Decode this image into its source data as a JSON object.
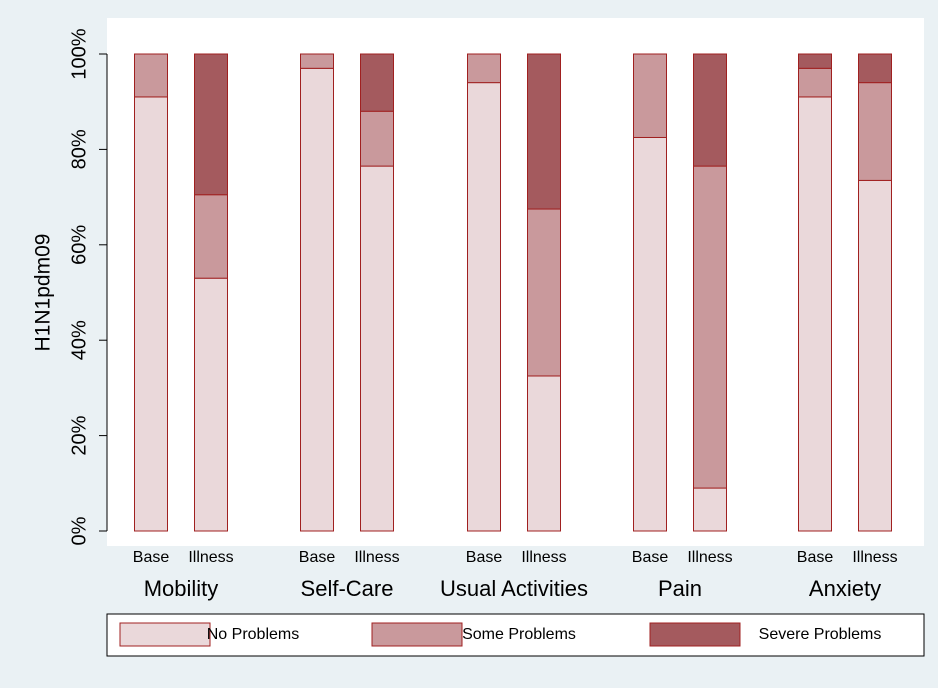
{
  "chart_data": {
    "type": "bar",
    "stacked": true,
    "percent": true,
    "ylabel": "H1N1pdm09",
    "ylim": [
      0,
      100
    ],
    "yticks": [
      "0%",
      "20%",
      "40%",
      "60%",
      "80%",
      "100%"
    ],
    "ytick_values": [
      0,
      20,
      40,
      60,
      80,
      100
    ],
    "groups": [
      "Mobility",
      "Self-Care",
      "Usual Activities",
      "Pain",
      "Anxiety"
    ],
    "sub_categories": [
      "Base",
      "Illness"
    ],
    "series": [
      {
        "name": "No Problems",
        "color": "#ead8da",
        "values": [
          [
            91,
            53
          ],
          [
            97,
            76.5
          ],
          [
            94,
            32.5
          ],
          [
            82.5,
            9
          ],
          [
            91,
            73.5
          ]
        ]
      },
      {
        "name": "Some Problems",
        "color": "#c9999c",
        "values": [
          [
            9,
            17.5
          ],
          [
            3,
            11.5
          ],
          [
            6,
            35
          ],
          [
            17.5,
            67.5
          ],
          [
            6,
            20.5
          ]
        ]
      },
      {
        "name": "Severe Problems",
        "color": "#a45a5e",
        "values": [
          [
            0,
            29.5
          ],
          [
            0,
            12
          ],
          [
            0,
            32.5
          ],
          [
            0,
            23.5
          ],
          [
            3,
            6
          ]
        ]
      }
    ],
    "grid": false,
    "legend_position": "bottom",
    "colors": {
      "outer_background": "#eaf1f4",
      "plot_background": "#ffffff",
      "bar_outline": "#a02020"
    }
  }
}
